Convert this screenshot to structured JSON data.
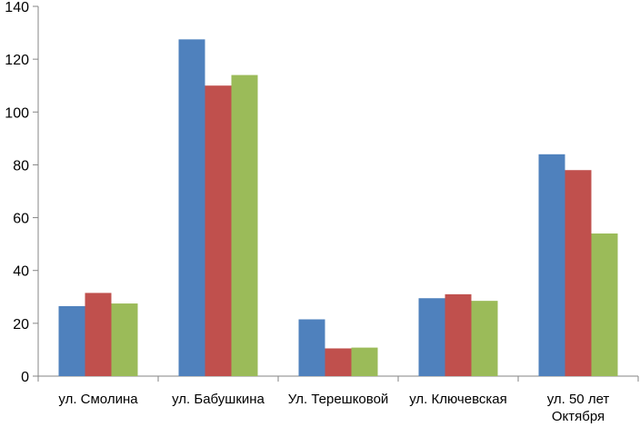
{
  "chart_data": {
    "type": "bar",
    "title": "",
    "xlabel": "",
    "ylabel": "",
    "ylim": [
      0,
      140
    ],
    "yticks": [
      "0",
      "20",
      "40",
      "60",
      "80",
      "100",
      "120",
      "140"
    ],
    "grid": false,
    "legend": "none",
    "categories": [
      [
        "ул. Смолина"
      ],
      [
        "ул. Бабушкина"
      ],
      [
        "Ул. Терешковой"
      ],
      [
        "ул. Ключевская"
      ],
      [
        "ул. 50 лет",
        "Октября"
      ]
    ],
    "series": [
      {
        "color": "#4f81bd",
        "values": [
          26.5,
          127.5,
          21.5,
          29.5,
          84
        ]
      },
      {
        "color": "#c0504d",
        "values": [
          31.5,
          110,
          10.5,
          31,
          78
        ]
      },
      {
        "color": "#9bbb59",
        "values": [
          27.5,
          114,
          10.8,
          28.5,
          54
        ]
      }
    ]
  }
}
